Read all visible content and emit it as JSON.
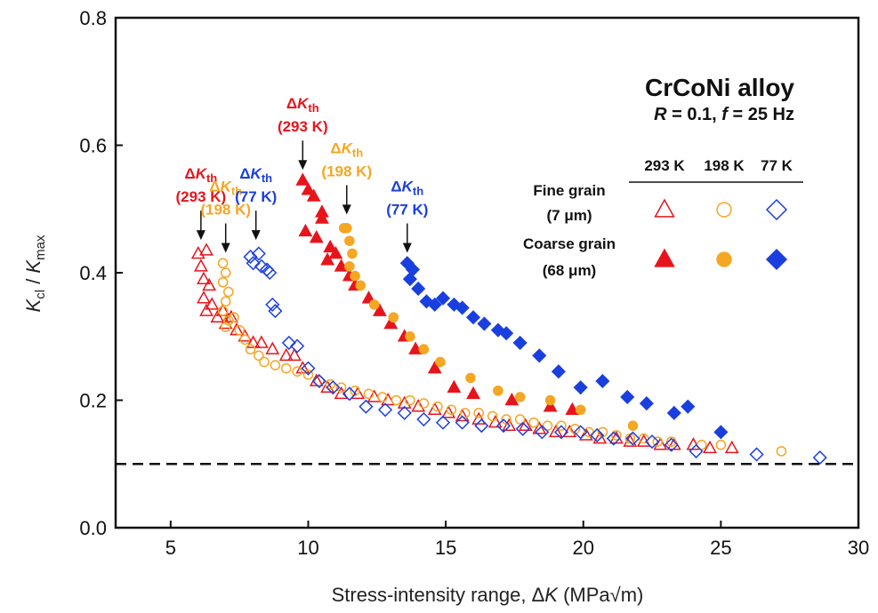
{
  "chart_data": {
    "type": "scatter",
    "title": "CrCoNi alloy",
    "condition": {
      "R_text": "R",
      "R_rest": " = 0.1, ",
      "f_text": "f",
      "f_rest": " = 25 Hz"
    },
    "xlabel": {
      "pre": "Stress-intensity range, Δ",
      "italic": "K",
      "post": " (MPa√m)"
    },
    "ylabel": {
      "k1": "K",
      "sub1": "cl",
      "mid": " / ",
      "k2": "K",
      "sub2": "max"
    },
    "xlim": [
      3,
      30
    ],
    "ylim": [
      0,
      0.8
    ],
    "xticks": [
      "5",
      "10",
      "15",
      "20",
      "25",
      "30"
    ],
    "yticks": [
      "0.0",
      "0.2",
      "0.4",
      "0.6",
      "0.8"
    ],
    "reference_line_y": 0.1,
    "legend": {
      "columns": [
        "293 K",
        "198 K",
        "77 K"
      ],
      "rows": [
        {
          "label1": "Fine grain",
          "label2": "(7 μm)",
          "fill": "open"
        },
        {
          "label1": "Coarse grain",
          "label2": "(68 μm)",
          "fill": "filled"
        }
      ]
    },
    "colors": {
      "293 K": "#e8141c",
      "198 K": "#f5a623",
      "77 K": "#1a3fe0"
    },
    "annotations": [
      {
        "text_pre": "Δ",
        "text_k": "K",
        "text_sub": "th",
        "label": "(293 K)",
        "color": "#e8141c",
        "x": 6.1,
        "y": 0.45
      },
      {
        "text_pre": "Δ",
        "text_k": "K",
        "text_sub": "th",
        "label": "(198 K)",
        "color": "#f5a623",
        "x": 7.0,
        "y": 0.43
      },
      {
        "text_pre": "Δ",
        "text_k": "K",
        "text_sub": "th",
        "label": "(77 K)",
        "color": "#1a3fe0",
        "x": 8.1,
        "y": 0.45
      },
      {
        "text_pre": "Δ",
        "text_k": "K",
        "text_sub": "th",
        "label": "(293 K)",
        "color": "#e8141c",
        "x": 9.8,
        "y": 0.56
      },
      {
        "text_pre": "Δ",
        "text_k": "K",
        "text_sub": "th",
        "label": "(198 K)",
        "color": "#f5a623",
        "x": 11.4,
        "y": 0.49
      },
      {
        "text_pre": "Δ",
        "text_k": "K",
        "text_sub": "th",
        "label": "(77 K)",
        "color": "#1a3fe0",
        "x": 13.6,
        "y": 0.43
      }
    ],
    "series": [
      {
        "name": "Fine grain 293 K",
        "marker": "triangle",
        "fill": "open",
        "color": "#e8141c",
        "points": [
          [
            6.0,
            0.43
          ],
          [
            6.3,
            0.435
          ],
          [
            6.1,
            0.41
          ],
          [
            6.2,
            0.39
          ],
          [
            6.4,
            0.38
          ],
          [
            6.2,
            0.36
          ],
          [
            6.5,
            0.35
          ],
          [
            6.3,
            0.34
          ],
          [
            6.7,
            0.33
          ],
          [
            6.9,
            0.34
          ],
          [
            7.2,
            0.33
          ],
          [
            7.0,
            0.32
          ],
          [
            7.4,
            0.31
          ],
          [
            7.7,
            0.3
          ],
          [
            8.0,
            0.29
          ],
          [
            8.3,
            0.29
          ],
          [
            8.7,
            0.28
          ],
          [
            9.2,
            0.27
          ],
          [
            9.5,
            0.27
          ],
          [
            9.8,
            0.25
          ],
          [
            10.3,
            0.23
          ],
          [
            10.7,
            0.22
          ],
          [
            11.2,
            0.21
          ],
          [
            11.8,
            0.21
          ],
          [
            12.4,
            0.205
          ],
          [
            12.9,
            0.2
          ],
          [
            13.5,
            0.195
          ],
          [
            14.0,
            0.19
          ],
          [
            14.6,
            0.185
          ],
          [
            15.1,
            0.18
          ],
          [
            15.6,
            0.175
          ],
          [
            16.2,
            0.17
          ],
          [
            16.8,
            0.165
          ],
          [
            17.3,
            0.16
          ],
          [
            17.9,
            0.16
          ],
          [
            18.4,
            0.155
          ],
          [
            19.0,
            0.15
          ],
          [
            19.5,
            0.15
          ],
          [
            20.1,
            0.145
          ],
          [
            20.6,
            0.14
          ],
          [
            21.2,
            0.14
          ],
          [
            21.7,
            0.135
          ],
          [
            22.2,
            0.135
          ],
          [
            22.8,
            0.13
          ],
          [
            23.3,
            0.13
          ],
          [
            24.0,
            0.13
          ],
          [
            24.6,
            0.125
          ],
          [
            25.4,
            0.125
          ]
        ]
      },
      {
        "name": "Fine grain 198 K",
        "marker": "circle",
        "fill": "open",
        "color": "#f5a623",
        "points": [
          [
            6.9,
            0.415
          ],
          [
            7.0,
            0.4
          ],
          [
            6.9,
            0.385
          ],
          [
            7.1,
            0.37
          ],
          [
            7.0,
            0.355
          ],
          [
            6.9,
            0.34
          ],
          [
            7.1,
            0.325
          ],
          [
            7.0,
            0.315
          ],
          [
            7.3,
            0.33
          ],
          [
            7.5,
            0.31
          ],
          [
            7.7,
            0.295
          ],
          [
            7.9,
            0.28
          ],
          [
            8.2,
            0.27
          ],
          [
            8.4,
            0.26
          ],
          [
            8.8,
            0.255
          ],
          [
            9.2,
            0.25
          ],
          [
            9.6,
            0.245
          ],
          [
            10.0,
            0.24
          ],
          [
            10.4,
            0.23
          ],
          [
            10.8,
            0.225
          ],
          [
            11.2,
            0.22
          ],
          [
            11.7,
            0.215
          ],
          [
            12.2,
            0.21
          ],
          [
            12.7,
            0.205
          ],
          [
            13.2,
            0.2
          ],
          [
            13.7,
            0.2
          ],
          [
            14.2,
            0.195
          ],
          [
            14.7,
            0.19
          ],
          [
            15.2,
            0.185
          ],
          [
            15.7,
            0.18
          ],
          [
            16.2,
            0.18
          ],
          [
            16.7,
            0.175
          ],
          [
            17.2,
            0.17
          ],
          [
            17.7,
            0.17
          ],
          [
            18.2,
            0.165
          ],
          [
            18.7,
            0.16
          ],
          [
            19.2,
            0.16
          ],
          [
            19.7,
            0.155
          ],
          [
            20.2,
            0.15
          ],
          [
            20.7,
            0.15
          ],
          [
            21.2,
            0.145
          ],
          [
            21.7,
            0.14
          ],
          [
            22.2,
            0.14
          ],
          [
            22.7,
            0.135
          ],
          [
            23.2,
            0.135
          ],
          [
            24.3,
            0.13
          ],
          [
            25.0,
            0.13
          ],
          [
            27.2,
            0.12
          ]
        ]
      },
      {
        "name": "Fine grain 77 K",
        "marker": "diamond",
        "fill": "open",
        "color": "#1a3fe0",
        "points": [
          [
            7.9,
            0.425
          ],
          [
            8.0,
            0.415
          ],
          [
            8.2,
            0.43
          ],
          [
            8.3,
            0.41
          ],
          [
            8.5,
            0.405
          ],
          [
            8.6,
            0.4
          ],
          [
            8.7,
            0.35
          ],
          [
            8.8,
            0.34
          ],
          [
            9.3,
            0.29
          ],
          [
            9.6,
            0.285
          ],
          [
            10.0,
            0.25
          ],
          [
            10.4,
            0.23
          ],
          [
            10.9,
            0.22
          ],
          [
            11.5,
            0.21
          ],
          [
            12.1,
            0.19
          ],
          [
            12.8,
            0.185
          ],
          [
            13.5,
            0.18
          ],
          [
            14.2,
            0.17
          ],
          [
            14.9,
            0.165
          ],
          [
            15.6,
            0.165
          ],
          [
            16.3,
            0.16
          ],
          [
            17.1,
            0.16
          ],
          [
            17.8,
            0.155
          ],
          [
            18.5,
            0.15
          ],
          [
            19.2,
            0.15
          ],
          [
            19.9,
            0.15
          ],
          [
            20.5,
            0.145
          ],
          [
            21.1,
            0.14
          ],
          [
            21.8,
            0.14
          ],
          [
            22.5,
            0.135
          ],
          [
            23.2,
            0.13
          ],
          [
            24.1,
            0.12
          ],
          [
            26.3,
            0.115
          ],
          [
            28.6,
            0.11
          ]
        ]
      },
      {
        "name": "Coarse grain 293 K",
        "marker": "triangle",
        "fill": "filled",
        "color": "#e8141c",
        "points": [
          [
            9.8,
            0.545
          ],
          [
            10.0,
            0.53
          ],
          [
            10.2,
            0.52
          ],
          [
            10.5,
            0.495
          ],
          [
            10.5,
            0.485
          ],
          [
            9.9,
            0.465
          ],
          [
            10.3,
            0.455
          ],
          [
            10.8,
            0.44
          ],
          [
            11.0,
            0.43
          ],
          [
            10.7,
            0.42
          ],
          [
            11.2,
            0.41
          ],
          [
            11.5,
            0.395
          ],
          [
            11.7,
            0.38
          ],
          [
            12.2,
            0.36
          ],
          [
            12.6,
            0.34
          ],
          [
            13.0,
            0.32
          ],
          [
            13.5,
            0.3
          ],
          [
            13.9,
            0.28
          ],
          [
            14.6,
            0.25
          ],
          [
            15.3,
            0.22
          ],
          [
            16.0,
            0.21
          ],
          [
            17.4,
            0.2
          ],
          [
            18.8,
            0.19
          ],
          [
            19.6,
            0.185
          ]
        ]
      },
      {
        "name": "Coarse grain 198 K",
        "marker": "circle",
        "fill": "filled",
        "color": "#f5a623",
        "points": [
          [
            11.3,
            0.47
          ],
          [
            11.4,
            0.47
          ],
          [
            11.5,
            0.45
          ],
          [
            11.6,
            0.43
          ],
          [
            11.5,
            0.41
          ],
          [
            11.7,
            0.395
          ],
          [
            11.9,
            0.38
          ],
          [
            12.4,
            0.35
          ],
          [
            13.1,
            0.33
          ],
          [
            13.7,
            0.3
          ],
          [
            14.2,
            0.28
          ],
          [
            14.8,
            0.26
          ],
          [
            15.9,
            0.235
          ],
          [
            16.9,
            0.215
          ],
          [
            17.7,
            0.205
          ],
          [
            18.8,
            0.2
          ],
          [
            19.9,
            0.185
          ],
          [
            21.8,
            0.16
          ]
        ]
      },
      {
        "name": "Coarse grain 77 K",
        "marker": "diamond",
        "fill": "filled",
        "color": "#1a3fe0",
        "points": [
          [
            13.6,
            0.415
          ],
          [
            13.8,
            0.405
          ],
          [
            13.7,
            0.39
          ],
          [
            14.0,
            0.375
          ],
          [
            14.3,
            0.355
          ],
          [
            14.6,
            0.35
          ],
          [
            14.9,
            0.36
          ],
          [
            15.3,
            0.35
          ],
          [
            15.6,
            0.345
          ],
          [
            16.0,
            0.33
          ],
          [
            16.4,
            0.32
          ],
          [
            16.9,
            0.31
          ],
          [
            17.2,
            0.305
          ],
          [
            17.7,
            0.29
          ],
          [
            18.4,
            0.27
          ],
          [
            19.1,
            0.245
          ],
          [
            19.9,
            0.22
          ],
          [
            20.7,
            0.23
          ],
          [
            21.6,
            0.205
          ],
          [
            22.3,
            0.195
          ],
          [
            23.3,
            0.18
          ],
          [
            23.8,
            0.19
          ],
          [
            25.0,
            0.15
          ]
        ]
      }
    ]
  }
}
